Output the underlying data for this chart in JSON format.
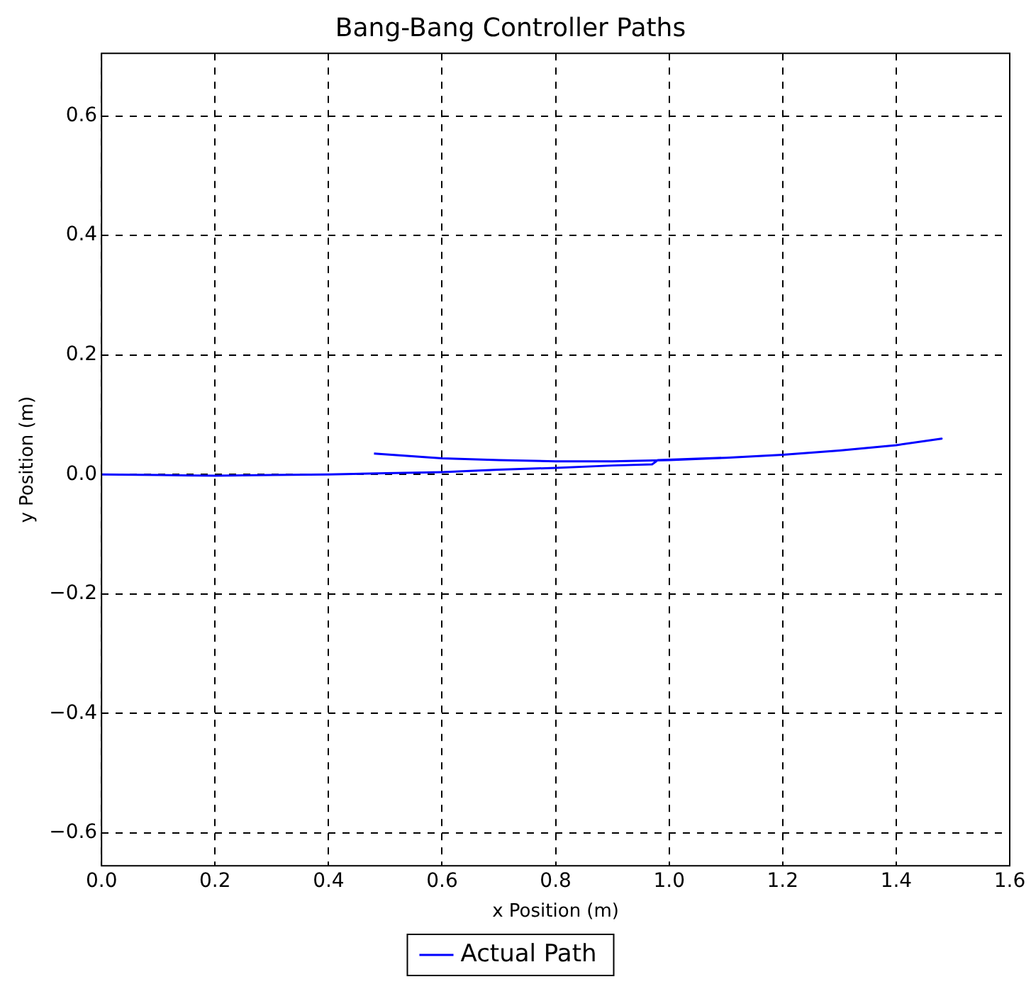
{
  "chart_data": {
    "type": "line",
    "title": "Bang-Bang Controller Paths",
    "xlabel": "x Position (m)",
    "ylabel": "y Position (m)",
    "xlim": [
      0,
      1.6
    ],
    "xticks": [
      {
        "value": 0,
        "label": "0.0"
      },
      {
        "value": 0.2,
        "label": "0.2"
      },
      {
        "value": 0.4,
        "label": "0.4"
      },
      {
        "value": 0.6,
        "label": "0.6"
      },
      {
        "value": 0.8,
        "label": "0.8"
      },
      {
        "value": 1,
        "label": "1.0"
      },
      {
        "value": 1.2,
        "label": "1.2"
      },
      {
        "value": 1.4,
        "label": "1.4"
      },
      {
        "value": 1.6,
        "label": "1.6"
      }
    ],
    "ylim": [
      -0.655,
      0.705
    ],
    "yticks": [
      {
        "value": -0.6,
        "label": "−0.6"
      },
      {
        "value": -0.4,
        "label": "−0.4"
      },
      {
        "value": -0.2,
        "label": "−0.2"
      },
      {
        "value": 0,
        "label": "0.0"
      },
      {
        "value": 0.2,
        "label": "0.2"
      },
      {
        "value": 0.4,
        "label": "0.4"
      },
      {
        "value": 0.6,
        "label": "0.6"
      }
    ],
    "grid": true,
    "legend": "bottom",
    "line_style": "solid",
    "marker": "none",
    "series": [
      {
        "name": "Actual Path",
        "color": "#0000ff",
        "x": [
          0,
          0.1,
          0.2,
          0.3,
          0.4,
          0.5,
          0.6,
          0.7,
          0.8,
          0.9,
          0.97,
          0.98,
          1.1,
          1.2,
          1.3,
          1.4,
          1.48,
          1.4,
          1.3,
          1.2,
          1.1,
          1.0,
          0.9,
          0.8,
          0.7,
          0.6,
          0.48
        ],
        "values": [
          0,
          -0.001,
          -0.002,
          -0.001,
          0,
          0.002,
          0.004,
          0.008,
          0.011,
          0.015,
          0.017,
          0.024,
          0.028,
          0.033,
          0.04,
          0.049,
          0.06,
          0.049,
          0.04,
          0.033,
          0.028,
          0.024,
          0.022,
          0.022,
          0.024,
          0.027,
          0.035
        ]
      }
    ]
  }
}
